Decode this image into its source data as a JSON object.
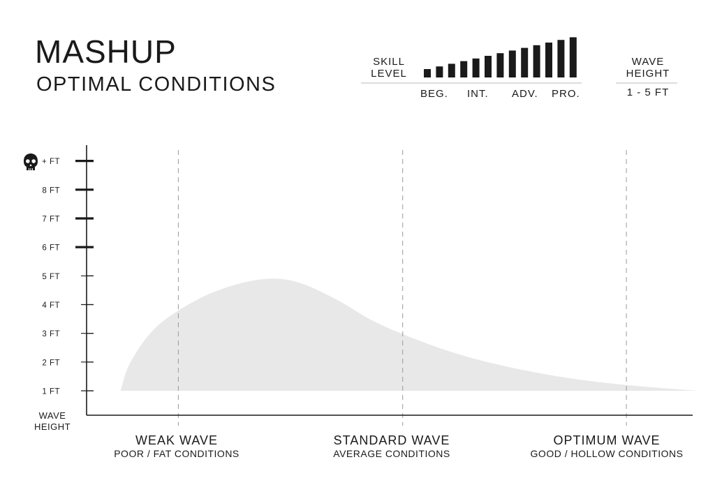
{
  "header": {
    "title": "MASHUP",
    "subtitle": "OPTIMAL CONDITIONS"
  },
  "skill": {
    "label_line1": "SKILL",
    "label_line2": "LEVEL",
    "ticks": [
      "BEG.",
      "INT.",
      "ADV.",
      "PRO."
    ],
    "bar_count": 13
  },
  "wave_height_box": {
    "label_line1": "WAVE",
    "label_line2": "HEIGHT",
    "range": "1 - 5 FT"
  },
  "colors": {
    "ink": "#1a1a1a",
    "fill": "#e8e8e8",
    "dash": "#999999"
  },
  "icons": {
    "top_tick": "skull-icon"
  },
  "chart_data": {
    "type": "area",
    "ylabel_line1": "WAVE",
    "ylabel_line2": "HEIGHT",
    "y_ticks": [
      {
        "value": 9,
        "label": "+ FT",
        "major": true
      },
      {
        "value": 8,
        "label": "8 FT",
        "major": true
      },
      {
        "value": 7,
        "label": "7 FT",
        "major": true
      },
      {
        "value": 6,
        "label": "6 FT",
        "major": true
      },
      {
        "value": 5,
        "label": "5 FT",
        "major": false
      },
      {
        "value": 4,
        "label": "4 FT",
        "major": false
      },
      {
        "value": 3,
        "label": "3 FT",
        "major": false
      },
      {
        "value": 2,
        "label": "2 FT",
        "major": false
      },
      {
        "value": 1,
        "label": "1 FT",
        "major": false
      }
    ],
    "ylim": [
      0.15,
      9.55
    ],
    "xlim": [
      0,
      1
    ],
    "categories": [
      {
        "title": "WEAK WAVE",
        "subtitle": "POOR / FAT CONDITIONS",
        "x": 0.146
      },
      {
        "title": "STANDARD WAVE",
        "subtitle": "AVERAGE CONDITIONS",
        "x": 0.503
      },
      {
        "title": "OPTIMUM WAVE",
        "subtitle": "GOOD / HOLLOW CONDITIONS",
        "x": 0.859
      }
    ],
    "curve": [
      {
        "x": 0.054,
        "y": 1.0
      },
      {
        "x": 0.07,
        "y": 2.0
      },
      {
        "x": 0.11,
        "y": 3.2
      },
      {
        "x": 0.17,
        "y": 4.1
      },
      {
        "x": 0.23,
        "y": 4.65
      },
      {
        "x": 0.29,
        "y": 4.9
      },
      {
        "x": 0.34,
        "y": 4.75
      },
      {
        "x": 0.4,
        "y": 4.15
      },
      {
        "x": 0.45,
        "y": 3.5
      },
      {
        "x": 0.5,
        "y": 3.0
      },
      {
        "x": 0.56,
        "y": 2.5
      },
      {
        "x": 0.62,
        "y": 2.1
      },
      {
        "x": 0.7,
        "y": 1.7
      },
      {
        "x": 0.78,
        "y": 1.4
      },
      {
        "x": 0.86,
        "y": 1.2
      },
      {
        "x": 0.93,
        "y": 1.07
      },
      {
        "x": 0.974,
        "y": 1.0
      }
    ]
  }
}
